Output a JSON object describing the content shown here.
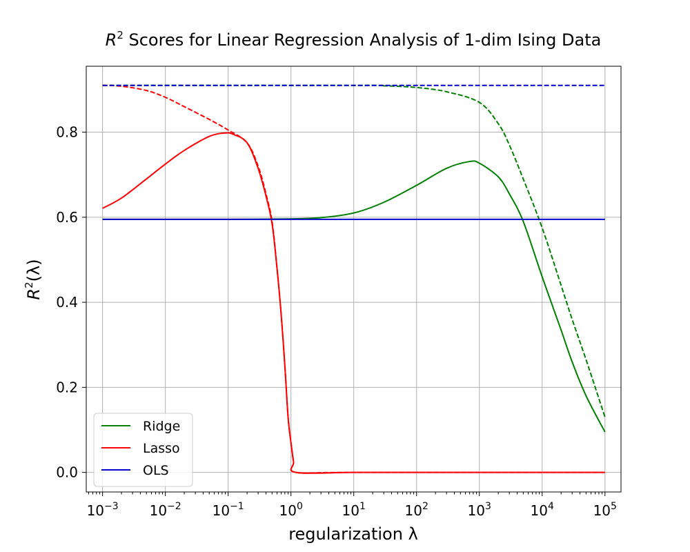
{
  "chart_data": {
    "type": "line",
    "title": {
      "prefix": "R",
      "sup": "2",
      "rest": " Scores for Linear Regression Analysis of 1-dim Ising Data"
    },
    "xlabel": "regularization λ",
    "ylabel": {
      "base": "R",
      "sup": "2",
      "rest": "(λ)"
    },
    "x_scale": "log",
    "xlim": [
      0.00055,
      180000
    ],
    "ylim": [
      -0.046,
      0.955
    ],
    "x_ticks": [
      {
        "value": 0.001,
        "base": "10",
        "exp": "−3"
      },
      {
        "value": 0.01,
        "base": "10",
        "exp": "−2"
      },
      {
        "value": 0.1,
        "base": "10",
        "exp": "−1"
      },
      {
        "value": 1,
        "base": "10",
        "exp": "0"
      },
      {
        "value": 10,
        "base": "10",
        "exp": "1"
      },
      {
        "value": 100,
        "base": "10",
        "exp": "2"
      },
      {
        "value": 1000,
        "base": "10",
        "exp": "3"
      },
      {
        "value": 10000,
        "base": "10",
        "exp": "4"
      },
      {
        "value": 100000,
        "base": "10",
        "exp": "5"
      }
    ],
    "y_ticks": [
      {
        "value": 0.0,
        "label": "0.0"
      },
      {
        "value": 0.2,
        "label": "0.2"
      },
      {
        "value": 0.4,
        "label": "0.4"
      },
      {
        "value": 0.6,
        "label": "0.6"
      },
      {
        "value": 0.8,
        "label": "0.8"
      }
    ],
    "grid": true,
    "legend_position": "lower-left",
    "legend": [
      {
        "label": "Ridge",
        "color": "#008000"
      },
      {
        "label": "Lasso",
        "color": "#ff0000"
      },
      {
        "label": "OLS",
        "color": "#0000cc"
      }
    ],
    "series": [
      {
        "name": "Ridge",
        "color": "#008000",
        "dash": false,
        "points": [
          [
            0.001,
            0.595
          ],
          [
            0.01,
            0.595
          ],
          [
            0.1,
            0.595
          ],
          [
            1,
            0.596
          ],
          [
            3,
            0.599
          ],
          [
            10,
            0.61
          ],
          [
            30,
            0.635
          ],
          [
            100,
            0.675
          ],
          [
            300,
            0.715
          ],
          [
            700,
            0.731
          ],
          [
            1000,
            0.727
          ],
          [
            2000,
            0.695
          ],
          [
            3000,
            0.655
          ],
          [
            5000,
            0.59
          ],
          [
            10000,
            0.46
          ],
          [
            20000,
            0.335
          ],
          [
            30000,
            0.26
          ],
          [
            50000,
            0.18
          ],
          [
            100000,
            0.095
          ]
        ]
      },
      {
        "name": "Ridge",
        "color": "#008000",
        "dash": true,
        "points": [
          [
            0.001,
            0.91
          ],
          [
            10,
            0.91
          ],
          [
            30,
            0.909
          ],
          [
            100,
            0.905
          ],
          [
            300,
            0.895
          ],
          [
            1000,
            0.87
          ],
          [
            2000,
            0.82
          ],
          [
            3000,
            0.77
          ],
          [
            5000,
            0.69
          ],
          [
            10000,
            0.575
          ],
          [
            20000,
            0.44
          ],
          [
            30000,
            0.36
          ],
          [
            50000,
            0.265
          ],
          [
            100000,
            0.13
          ]
        ]
      },
      {
        "name": "Lasso",
        "color": "#ff0000",
        "dash": false,
        "points": [
          [
            0.001,
            0.621
          ],
          [
            0.002,
            0.645
          ],
          [
            0.005,
            0.69
          ],
          [
            0.01,
            0.725
          ],
          [
            0.02,
            0.757
          ],
          [
            0.05,
            0.79
          ],
          [
            0.09,
            0.798
          ],
          [
            0.12,
            0.795
          ],
          [
            0.2,
            0.775
          ],
          [
            0.3,
            0.715
          ],
          [
            0.4,
            0.65
          ],
          [
            0.5,
            0.585
          ],
          [
            0.6,
            0.48
          ],
          [
            0.7,
            0.37
          ],
          [
            0.8,
            0.25
          ],
          [
            0.9,
            0.13
          ],
          [
            1.0,
            0.07
          ],
          [
            1.1,
            0.025
          ],
          [
            1.2,
            0.0
          ],
          [
            10,
            0.0
          ],
          [
            100,
            0.0
          ],
          [
            1000,
            0.0
          ],
          [
            10000,
            0.0
          ],
          [
            100000,
            0.0
          ]
        ]
      },
      {
        "name": "Lasso",
        "color": "#ff0000",
        "dash": true,
        "points": [
          [
            0.001,
            0.91
          ],
          [
            0.002,
            0.908
          ],
          [
            0.005,
            0.898
          ],
          [
            0.01,
            0.882
          ],
          [
            0.02,
            0.86
          ],
          [
            0.05,
            0.83
          ],
          [
            0.1,
            0.805
          ],
          [
            0.2,
            0.775
          ],
          [
            0.3,
            0.72
          ],
          [
            0.4,
            0.655
          ],
          [
            0.5,
            0.59
          ],
          [
            0.6,
            0.48
          ],
          [
            0.7,
            0.37
          ],
          [
            0.8,
            0.25
          ],
          [
            0.9,
            0.13
          ],
          [
            1.0,
            0.07
          ],
          [
            1.1,
            0.025
          ],
          [
            1.2,
            0.0
          ],
          [
            10,
            0.0
          ],
          [
            100000,
            0.0
          ]
        ]
      },
      {
        "name": "OLS",
        "color": "#0000cc",
        "dash": false,
        "points": [
          [
            0.001,
            0.595
          ],
          [
            100000,
            0.595
          ]
        ]
      },
      {
        "name": "OLS",
        "color": "#0000cc",
        "dash": true,
        "points": [
          [
            0.001,
            0.91
          ],
          [
            100000,
            0.91
          ]
        ]
      }
    ]
  }
}
